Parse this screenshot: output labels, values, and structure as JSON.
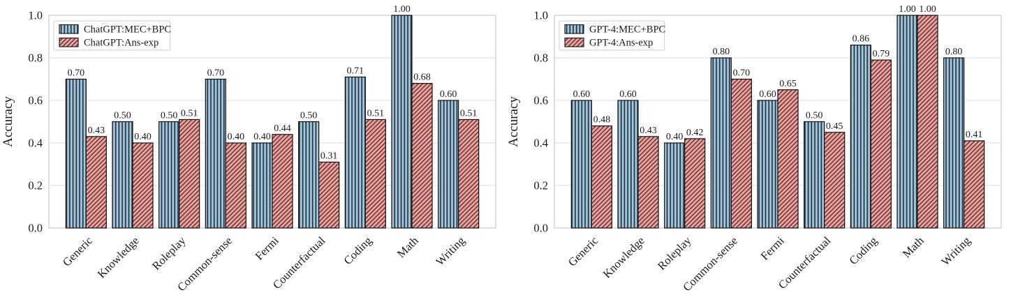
{
  "colors": {
    "background": "#ffffff",
    "grid": "#dcdcdc",
    "axis": "#c9c9c9",
    "bar_edge": "#111111",
    "legend_border": "#cccccc",
    "text": "#1a1a1a",
    "blue_fill": "#a8c8dc",
    "blue_hatch": "#22374a",
    "red_fill": "#f69c99",
    "red_hatch": "#2b2b2b"
  },
  "chart_data": [
    {
      "type": "bar",
      "title": "",
      "xlabel": "",
      "ylabel": "Accuracy",
      "ylim": [
        0,
        1.0
      ],
      "yticks": [
        "0.0",
        "0.2",
        "0.4",
        "0.6",
        "0.8",
        "1.0"
      ],
      "grid": true,
      "legend_position": "upper left",
      "categories": [
        "Generic",
        "Knowledge",
        "Roleplay",
        "Common-sense",
        "Fermi",
        "Counterfactual",
        "Coding",
        "Math",
        "Writing"
      ],
      "series": [
        {
          "name": "ChatGPT:MEC+BPC",
          "hatch": "vertical",
          "fill": "#a8c8dc",
          "hatch_color": "#22374a",
          "values": [
            0.7,
            0.5,
            0.5,
            0.7,
            0.4,
            0.5,
            0.71,
            1.0,
            0.6
          ],
          "labels": [
            "0.70",
            "0.50",
            "0.50",
            "0.70",
            "0.40",
            "0.50",
            "0.71",
            "1.00",
            "0.60"
          ]
        },
        {
          "name": "ChatGPT:Ans-exp",
          "hatch": "diagonal",
          "fill": "#f69c99",
          "hatch_color": "#2b2b2b",
          "values": [
            0.43,
            0.4,
            0.51,
            0.4,
            0.44,
            0.31,
            0.51,
            0.68,
            0.51
          ],
          "labels": [
            "0.43",
            "0.40",
            "0.51",
            "0.40",
            "0.44",
            "0.31",
            "0.51",
            "0.68",
            "0.51"
          ]
        }
      ]
    },
    {
      "type": "bar",
      "title": "",
      "xlabel": "",
      "ylabel": "Accuracy",
      "ylim": [
        0,
        1.0
      ],
      "yticks": [
        "0.0",
        "0.2",
        "0.4",
        "0.6",
        "0.8",
        "1.0"
      ],
      "grid": true,
      "legend_position": "upper left",
      "categories": [
        "Generic",
        "Knowledge",
        "Roleplay",
        "Common-sense",
        "Fermi",
        "Counterfactual",
        "Coding",
        "Math",
        "Writing"
      ],
      "series": [
        {
          "name": "GPT-4:MEC+BPC",
          "hatch": "vertical",
          "fill": "#a8c8dc",
          "hatch_color": "#22374a",
          "values": [
            0.6,
            0.6,
            0.4,
            0.8,
            0.6,
            0.5,
            0.86,
            1.0,
            0.8
          ],
          "labels": [
            "0.60",
            "0.60",
            "0.40",
            "0.80",
            "0.60",
            "0.50",
            "0.86",
            "1.00",
            "0.80"
          ]
        },
        {
          "name": "GPT-4:Ans-exp",
          "hatch": "diagonal",
          "fill": "#f69c99",
          "hatch_color": "#2b2b2b",
          "values": [
            0.48,
            0.43,
            0.42,
            0.7,
            0.65,
            0.45,
            0.79,
            1.0,
            0.41
          ],
          "labels": [
            "0.48",
            "0.43",
            "0.42",
            "0.70",
            "0.65",
            "0.45",
            "0.79",
            "1.00",
            "0.41"
          ]
        }
      ]
    }
  ]
}
